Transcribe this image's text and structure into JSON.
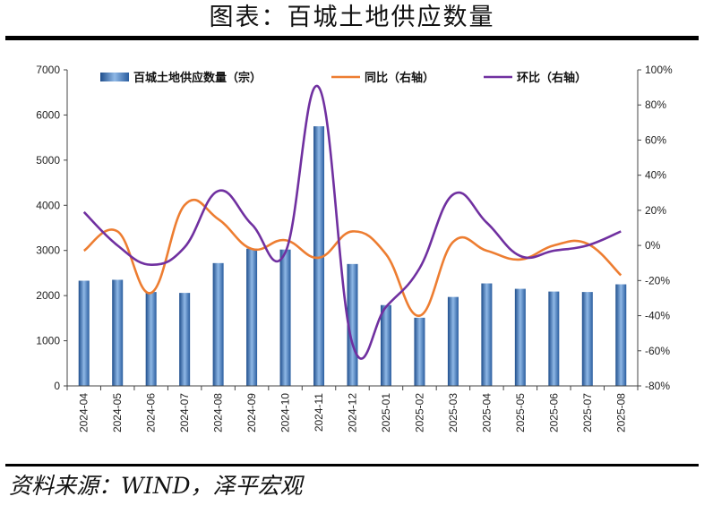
{
  "title": "图表：百城土地供应数量",
  "source": "资料来源：WIND，泽平宏观",
  "chart_data": {
    "type": "bar",
    "categories": [
      "2024-04",
      "2024-05",
      "2024-06",
      "2024-07",
      "2024-08",
      "2024-09",
      "2024-10",
      "2024-11",
      "2024-12",
      "2025-01",
      "2025-02",
      "2025-03",
      "2025-04",
      "2025-05",
      "2025-06",
      "2025-07",
      "2025-08"
    ],
    "series": [
      {
        "name": "百城土地供应数量（宗）",
        "type": "bar",
        "axis": "left",
        "values": [
          2330,
          2350,
          2080,
          2060,
          2720,
          3040,
          3020,
          5750,
          2700,
          1790,
          1510,
          1970,
          2270,
          2150,
          2090,
          2080,
          2250
        ],
        "color": "#4a86c8"
      },
      {
        "name": "同比（右轴）",
        "type": "line",
        "axis": "right",
        "values": [
          -3,
          8,
          -27,
          23,
          15,
          -2,
          3,
          -7,
          8,
          -5,
          -40,
          2,
          -3,
          -8,
          0,
          1,
          -17
        ],
        "color": "#ed7d31"
      },
      {
        "name": "环比（右轴）",
        "type": "line",
        "axis": "right",
        "values": [
          19,
          0,
          -11,
          -1,
          31,
          12,
          -4,
          90,
          -56,
          -35,
          -13,
          29,
          13,
          -6,
          -3,
          0,
          8
        ],
        "color": "#7030a0"
      }
    ],
    "y_left": {
      "ylim": [
        0,
        7000
      ],
      "ticks": [
        "0",
        "1000",
        "2000",
        "3000",
        "4000",
        "5000",
        "6000",
        "7000"
      ]
    },
    "y_right": {
      "ylim": [
        -80,
        100
      ],
      "ticks": [
        "-80%",
        "-60%",
        "-40%",
        "-20%",
        "0%",
        "20%",
        "40%",
        "60%",
        "80%",
        "100%"
      ]
    },
    "grid": false,
    "legend_position": "top"
  }
}
